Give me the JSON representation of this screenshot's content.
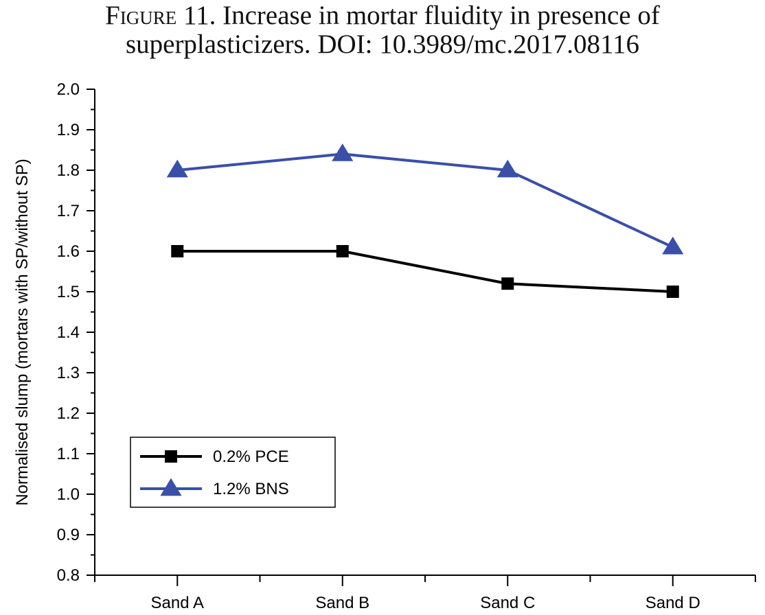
{
  "figure": {
    "label": "Figure 11.",
    "caption_line1": "Increase in mortar fluidity in presence of",
    "caption_line2": "superplasticizers. DOI: 10.3989/mc.2017.08116"
  },
  "chart_data": {
    "type": "line",
    "title": "Increase in mortar fluidity in presence of superplasticizers",
    "xlabel": "",
    "ylabel": "Normalised slump (mortars with SP/without SP)",
    "categories": [
      "Sand A",
      "Sand B",
      "Sand C",
      "Sand D"
    ],
    "ylim": [
      0.8,
      2.0
    ],
    "yticks": [
      "0.8",
      "0.9",
      "1.0",
      "1.1",
      "1.2",
      "1.3",
      "1.4",
      "1.5",
      "1.6",
      "1.7",
      "1.8",
      "1.9",
      "2.0"
    ],
    "grid": false,
    "legend_position": "bottom-left",
    "series": [
      {
        "name": "0.2% PCE",
        "values": [
          1.6,
          1.6,
          1.52,
          1.5
        ],
        "color": "#000000",
        "marker": "square"
      },
      {
        "name": "1.2% BNS",
        "values": [
          1.8,
          1.84,
          1.8,
          1.61
        ],
        "color": "#3a4fa8",
        "marker": "triangle"
      }
    ]
  }
}
